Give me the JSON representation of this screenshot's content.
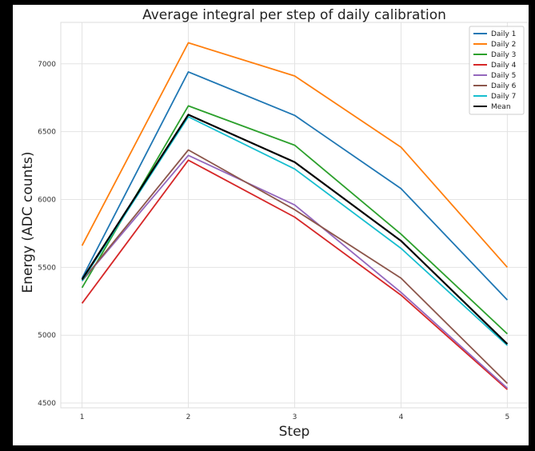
{
  "chart_data": {
    "type": "line",
    "title": "Average integral per step of daily calibration",
    "xlabel": "Step",
    "ylabel": "Energy (ADC counts)",
    "x": [
      1,
      2,
      3,
      4,
      5
    ],
    "xticks": [
      1,
      2,
      3,
      4,
      5
    ],
    "yticks": [
      4500,
      5000,
      5500,
      6000,
      6500,
      7000
    ],
    "xlim": [
      0.8,
      5.2
    ],
    "ylim": [
      4465,
      7305
    ],
    "grid": true,
    "legend_position": "top-right",
    "series": [
      {
        "name": "Daily 1",
        "color": "#1f77b4",
        "values": [
          5420,
          6940,
          6620,
          6080,
          5260
        ]
      },
      {
        "name": "Daily 2",
        "color": "#ff7f0e",
        "values": [
          5660,
          7155,
          6910,
          6385,
          5500
        ]
      },
      {
        "name": "Daily 3",
        "color": "#2ca02c",
        "values": [
          5350,
          6690,
          6400,
          5745,
          5010
        ]
      },
      {
        "name": "Daily 4",
        "color": "#d62728",
        "values": [
          5235,
          6290,
          5870,
          5295,
          4600
        ]
      },
      {
        "name": "Daily 5",
        "color": "#9467bd",
        "values": [
          5400,
          6325,
          5960,
          5315,
          4610
        ]
      },
      {
        "name": "Daily 6",
        "color": "#8c564b",
        "values": [
          5400,
          6365,
          5925,
          5420,
          4645
        ]
      },
      {
        "name": "Daily 7",
        "color": "#17becf",
        "values": [
          5400,
          6610,
          6225,
          5640,
          4925
        ]
      },
      {
        "name": "Mean",
        "color": "#000000",
        "values": [
          5410,
          6625,
          6275,
          5695,
          4935
        ]
      }
    ]
  }
}
